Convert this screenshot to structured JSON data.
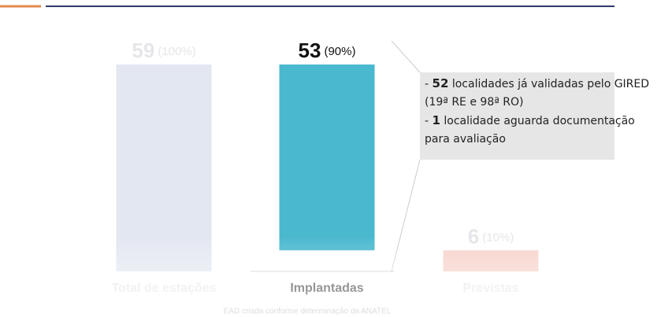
{
  "chart_data": {
    "type": "waterfall",
    "categories": [
      "Total de estações",
      "Implantadas",
      "Previstas"
    ],
    "values": [
      59,
      53,
      6
    ],
    "shares": [
      100,
      90,
      10
    ],
    "share_labels": [
      "(100%)",
      "(90%)",
      "(10%)"
    ],
    "colors": [
      "#e3e7f1",
      "#4ab8cf",
      "#f7d3cb"
    ],
    "highlight": 1,
    "ylim": [
      0,
      59
    ],
    "annotations": [
      {
        "number": 52,
        "text": "localidades já validadas pelo GIRED (19ª RE e 98ª RO)"
      },
      {
        "number": 1,
        "text": "localidade aguarda documentação para avaliação"
      }
    ],
    "footer": "EAD criada conforme determinação da ANATEL"
  }
}
